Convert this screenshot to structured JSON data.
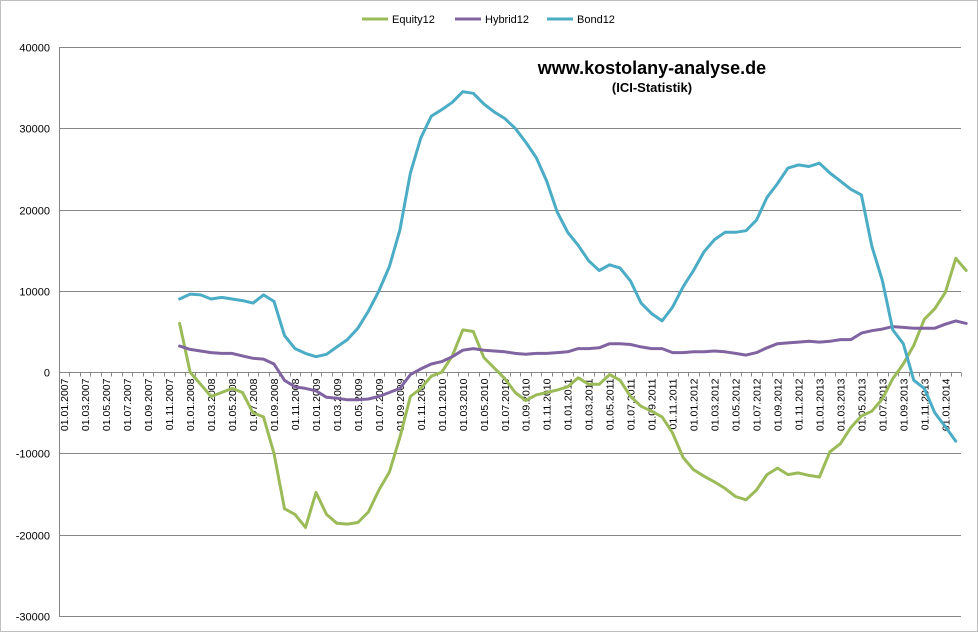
{
  "chart_data": {
    "type": "line",
    "title": "www.kostolany-analyse.de",
    "subtitle": "(ICI-Statistik)",
    "xlabel": "",
    "ylabel": "",
    "ylim": [
      -30000,
      40000
    ],
    "yticks": [
      40000,
      30000,
      20000,
      10000,
      0,
      -10000,
      -20000,
      -30000
    ],
    "grid": true,
    "legend_position": "top-center",
    "x_tick_labels": [
      "01.01.2007",
      "01.03.2007",
      "01.05.2007",
      "01.07.2007",
      "01.09.2007",
      "01.11.2007",
      "01.01.2008",
      "01.03.2008",
      "01.05.2008",
      "01.07.2008",
      "01.09.2008",
      "01.11.2008",
      "01.01.2009",
      "01.03.2009",
      "01.05.2009",
      "01.07.2009",
      "01.09.2009",
      "01.11.2009",
      "01.01.2010",
      "01.03.2010",
      "01.05.2010",
      "01.07.2010",
      "01.09.2010",
      "01.11.2010",
      "01.01.2011",
      "01.03.2011",
      "01.05.2011",
      "01.07.2011",
      "01.09.2011",
      "01.11.2011",
      "01.01.2012",
      "01.03.2012",
      "01.05.2012",
      "01.07.2012",
      "01.09.2012",
      "01.11.2012",
      "01.01.2013",
      "01.03.2013",
      "01.05.2013",
      "01.07.2013",
      "01.09.2013",
      "01.11.2013",
      "01.01.2014"
    ],
    "x_start_month": "12.2007",
    "series": [
      {
        "name": "Equity12",
        "color": "#9bbb59",
        "values": [
          6000,
          0,
          -1500,
          -3000,
          -2500,
          -2000,
          -2500,
          -5000,
          -5500,
          -10000,
          -16800,
          -17500,
          -19100,
          -14800,
          -17500,
          -18600,
          -18700,
          -18500,
          -17200,
          -14500,
          -12300,
          -8000,
          -3000,
          -2000,
          -500,
          0,
          2000,
          5200,
          5000,
          1800,
          500,
          -800,
          -2500,
          -3500,
          -2800,
          -2500,
          -2200,
          -1800,
          -700,
          -1500,
          -1500,
          -300,
          -1000,
          -3000,
          -4200,
          -4800,
          -5500,
          -7500,
          -10500,
          -12000,
          -12800,
          -13500,
          -14300,
          -15300,
          -15700,
          -14500,
          -12600,
          -11800,
          -12600,
          -12400,
          -12700,
          -12900,
          -9800,
          -8800,
          -6800,
          -5400,
          -4800,
          -3300,
          -800,
          1000,
          3300,
          6500,
          7800,
          9800,
          14000,
          12500
        ]
      },
      {
        "name": "Hybrid12",
        "color": "#8064a2",
        "values": [
          3200,
          2800,
          2600,
          2400,
          2300,
          2300,
          2000,
          1700,
          1600,
          1000,
          -1000,
          -1800,
          -2000,
          -2300,
          -3100,
          -3200,
          -3400,
          -3400,
          -3300,
          -3000,
          -2500,
          -2000,
          -300,
          400,
          1000,
          1300,
          1900,
          2700,
          2900,
          2700,
          2600,
          2500,
          2300,
          2200,
          2300,
          2300,
          2400,
          2500,
          2900,
          2900,
          3000,
          3500,
          3500,
          3400,
          3100,
          2900,
          2900,
          2400,
          2400,
          2500,
          2500,
          2600,
          2500,
          2300,
          2100,
          2400,
          3000,
          3500,
          3600,
          3700,
          3800,
          3700,
          3800,
          4000,
          4000,
          4800,
          5100,
          5300,
          5600,
          5500,
          5400,
          5400,
          5400,
          5900,
          6300,
          6000
        ]
      },
      {
        "name": "Bond12",
        "color": "#4bacc6",
        "values": [
          9000,
          9600,
          9500,
          9000,
          9200,
          9000,
          8800,
          8500,
          9500,
          8700,
          4500,
          2900,
          2300,
          1900,
          2200,
          3100,
          4000,
          5400,
          7500,
          10000,
          13000,
          17500,
          24500,
          28800,
          31500,
          32300,
          33200,
          34500,
          34300,
          33000,
          32000,
          31200,
          30000,
          28300,
          26400,
          23500,
          19700,
          17200,
          15600,
          13700,
          12500,
          13200,
          12800,
          11200,
          8500,
          7200,
          6300,
          8000,
          10500,
          12500,
          14800,
          16300,
          17200,
          17200,
          17400,
          18700,
          21500,
          23200,
          25100,
          25500,
          25300,
          25700,
          24500,
          23500,
          22500,
          21800,
          15500,
          11300,
          5200,
          3500,
          -1000,
          -2000,
          -5000,
          -6700,
          -8500
        ]
      }
    ]
  }
}
